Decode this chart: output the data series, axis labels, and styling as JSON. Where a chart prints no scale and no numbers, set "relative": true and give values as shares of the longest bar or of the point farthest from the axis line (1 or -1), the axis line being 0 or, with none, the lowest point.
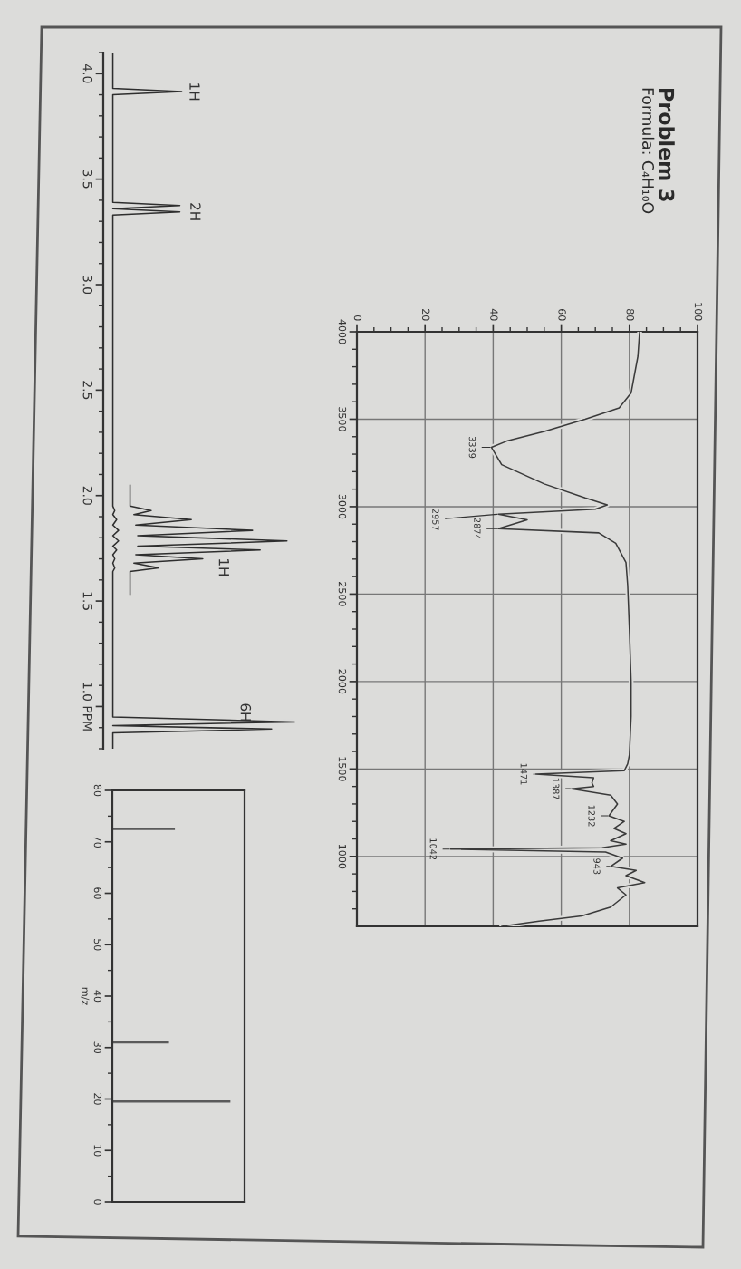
{
  "chart_data": [
    {
      "type": "line",
      "orientation": "horizontal",
      "title": "Problem 3",
      "subtitle": "Formula: C₄H₁₀O",
      "color": "#3a3a3a",
      "grid": true,
      "xlim": [
        0,
        100
      ],
      "xticks": [
        0,
        20,
        40,
        60,
        80,
        100,
        {
          "value": 5,
          "label": null
        },
        {
          "value": 10,
          "label": null
        },
        {
          "value": 15,
          "label": null
        },
        {
          "value": 25,
          "label": null
        },
        {
          "value": 30,
          "label": null
        },
        {
          "value": 35,
          "label": null
        },
        {
          "value": 45,
          "label": null
        },
        {
          "value": 50,
          "label": null
        },
        {
          "value": 55,
          "label": null
        },
        {
          "value": 65,
          "label": null
        },
        {
          "value": 70,
          "label": null
        },
        {
          "value": 75,
          "label": null
        },
        {
          "value": 85,
          "label": null
        },
        {
          "value": 90,
          "label": null
        },
        {
          "value": 95,
          "label": null
        }
      ],
      "ylim": [
        600,
        4000
      ],
      "yticks": [
        4000,
        3500,
        3000,
        2500,
        2000,
        1500,
        1000,
        {
          "value": 3900,
          "label": null
        },
        {
          "value": 3800,
          "label": null
        },
        {
          "value": 3700,
          "label": null
        },
        {
          "value": 3600,
          "label": null
        },
        {
          "value": 3400,
          "label": null
        },
        {
          "value": 3300,
          "label": null
        },
        {
          "value": 3200,
          "label": null
        },
        {
          "value": 3100,
          "label": null
        },
        {
          "value": 2900,
          "label": null
        },
        {
          "value": 2800,
          "label": null
        },
        {
          "value": 2700,
          "label": null
        },
        {
          "value": 2600,
          "label": null
        },
        {
          "value": 2400,
          "label": null
        },
        {
          "value": 2300,
          "label": null
        },
        {
          "value": 2200,
          "label": null
        },
        {
          "value": 2100,
          "label": null
        },
        {
          "value": 1900,
          "label": null
        },
        {
          "value": 1800,
          "label": null
        },
        {
          "value": 1700,
          "label": null
        },
        {
          "value": 1600,
          "label": null
        },
        {
          "value": 1400,
          "label": null
        },
        {
          "value": 1300,
          "label": null
        },
        {
          "value": 1200,
          "label": null
        },
        {
          "value": 1100,
          "label": null
        },
        {
          "value": 900,
          "label": null
        },
        {
          "value": 800,
          "label": null
        },
        {
          "value": 700,
          "label": null
        }
      ],
      "x": [
        4000,
        3860,
        3650,
        3565,
        3500,
        3430,
        3375,
        3339,
        3240,
        3130,
        3050,
        3010,
        2985,
        2957,
        2925,
        2874,
        2850,
        2790,
        2680,
        2550,
        2300,
        2000,
        1800,
        1580,
        1530,
        1490,
        1471,
        1450,
        1420,
        1400,
        1387,
        1350,
        1300,
        1232,
        1200,
        1160,
        1130,
        1090,
        1070,
        1050,
        1042,
        1025,
        990,
        943,
        920,
        890,
        850,
        820,
        780,
        710,
        660,
        630,
        600
      ],
      "values": [
        83,
        82.5,
        80.5,
        77,
        67,
        55,
        44,
        39.5,
        42.5,
        55,
        67,
        73.5,
        70,
        41.5,
        50,
        41.5,
        71,
        76,
        79,
        79.5,
        80,
        80.5,
        80.5,
        80,
        79.5,
        78.5,
        52.5,
        69.5,
        69,
        69.5,
        63,
        74.5,
        76.5,
        74,
        78.5,
        75.5,
        79,
        74.5,
        79,
        72,
        27.5,
        73,
        78,
        74.5,
        82,
        79,
        84.5,
        76.5,
        79,
        74.5,
        66,
        53.5,
        42.5
      ],
      "annotations": [
        {
          "text": "3339",
          "x": 39.5,
          "y": 3339
        },
        {
          "text": "2957",
          "x": 41.5,
          "y": 2957
        },
        {
          "text": "2874",
          "x": 41.5,
          "y": 2874
        },
        {
          "text": "1471",
          "x": 52.5,
          "y": 1471
        },
        {
          "text": "1387",
          "x": 63,
          "y": 1387
        },
        {
          "text": "1232",
          "x": 74,
          "y": 1232
        },
        {
          "text": "1042",
          "x": 27.5,
          "y": 1042
        },
        {
          "text": "943",
          "x": 74.5,
          "y": 943
        }
      ]
    },
    {
      "type": "line",
      "orientation": "horizontal",
      "relative": true,
      "tick_labels": "y",
      "ylim": [
        0.8,
        4.1
      ],
      "yticks": [
        {
          "value": 4,
          "label": "4.0"
        },
        3.5,
        {
          "value": 3,
          "label": "3.0"
        },
        2.5,
        {
          "value": 2,
          "label": "2.0"
        },
        1.5,
        {
          "value": 1,
          "label": "1.0 PPM"
        },
        {
          "value": 4.1,
          "label": null
        },
        {
          "value": 3.9,
          "label": null
        },
        {
          "value": 3.8,
          "label": null
        },
        {
          "value": 3.7,
          "label": null
        },
        {
          "value": 3.6,
          "label": null
        },
        {
          "value": 3.4,
          "label": null
        },
        {
          "value": 3.3,
          "label": null
        },
        {
          "value": 3.2,
          "label": null
        },
        {
          "value": 3.1,
          "label": null
        },
        {
          "value": 2.9,
          "label": null
        },
        {
          "value": 2.8,
          "label": null
        },
        {
          "value": 2.7,
          "label": null
        },
        {
          "value": 2.6,
          "label": null
        },
        {
          "value": 2.4,
          "label": null
        },
        {
          "value": 2.3,
          "label": null
        },
        {
          "value": 2.2,
          "label": null
        },
        {
          "value": 2.1,
          "label": null
        },
        {
          "value": 1.9,
          "label": null
        },
        {
          "value": 1.8,
          "label": null
        },
        {
          "value": 1.7,
          "label": null
        },
        {
          "value": 1.6,
          "label": null
        },
        {
          "value": 1.4,
          "label": null
        },
        {
          "value": 1.3,
          "label": null
        },
        {
          "value": 1.2,
          "label": null
        },
        {
          "value": 1.1,
          "label": null
        },
        {
          "value": 0.9,
          "label": null
        },
        {
          "value": 0.8,
          "label": null
        }
      ],
      "series": [
        {
          "color": "#2e2e2e",
          "x": [
            4.1,
            3.93,
            3.915,
            3.9,
            3.39,
            3.375,
            3.36,
            3.345,
            3.33,
            1.95,
            1.929,
            1.91,
            1.886,
            1.86,
            1.835,
            1.81,
            1.785,
            1.76,
            1.742,
            1.72,
            1.7,
            1.68,
            1.657,
            1.64,
            0.95,
            0.927,
            0.91,
            0.893,
            0.875,
            0.8
          ],
          "values": [
            0.05,
            0.05,
            0.41,
            0.05,
            0.05,
            0.4,
            0.05,
            0.4,
            0.05,
            0.05,
            0.06,
            0.05,
            0.07,
            0.05,
            0.08,
            0.05,
            0.08,
            0.05,
            0.07,
            0.05,
            0.06,
            0.05,
            0.06,
            0.05,
            0.05,
            1.0,
            0.05,
            0.88,
            0.05,
            0.05
          ]
        },
        {
          "color": "#2e2e2e",
          "x": [
            2.05,
            1.95,
            1.929,
            1.91,
            1.886,
            1.86,
            1.835,
            1.81,
            1.785,
            1.76,
            1.742,
            1.72,
            1.7,
            1.68,
            1.657,
            1.64,
            1.53
          ],
          "values": [
            0.14,
            0.14,
            0.25,
            0.16,
            0.46,
            0.17,
            0.78,
            0.18,
            0.96,
            0.18,
            0.82,
            0.17,
            0.52,
            0.16,
            0.29,
            0.14,
            0.14
          ]
        }
      ],
      "annotations": [
        {
          "text": "1H",
          "x": 0.41,
          "y": 3.915
        },
        {
          "text": "2H",
          "x": 0.4,
          "y": 3.345
        },
        "1H",
        "6H"
      ]
    },
    {
      "type": "bar",
      "orientation": "horizontal",
      "relative": true,
      "tick_labels": "y",
      "ylabel": "m/z",
      "color": "#5a5a5a",
      "ylim": [
        0,
        80
      ],
      "yticks": [
        80,
        70,
        60,
        50,
        40,
        30,
        20,
        10,
        0,
        {
          "value": 75,
          "label": null
        },
        {
          "value": 65,
          "label": null
        },
        {
          "value": 55,
          "label": null
        },
        {
          "value": 45,
          "label": null
        },
        {
          "value": 35,
          "label": null
        },
        {
          "value": 25,
          "label": null
        },
        {
          "value": 15,
          "label": null
        },
        {
          "value": 5,
          "label": null
        }
      ],
      "x": [
        19.5,
        31,
        72.5
      ],
      "values": [
        1.0,
        0.48,
        0.53
      ]
    }
  ]
}
